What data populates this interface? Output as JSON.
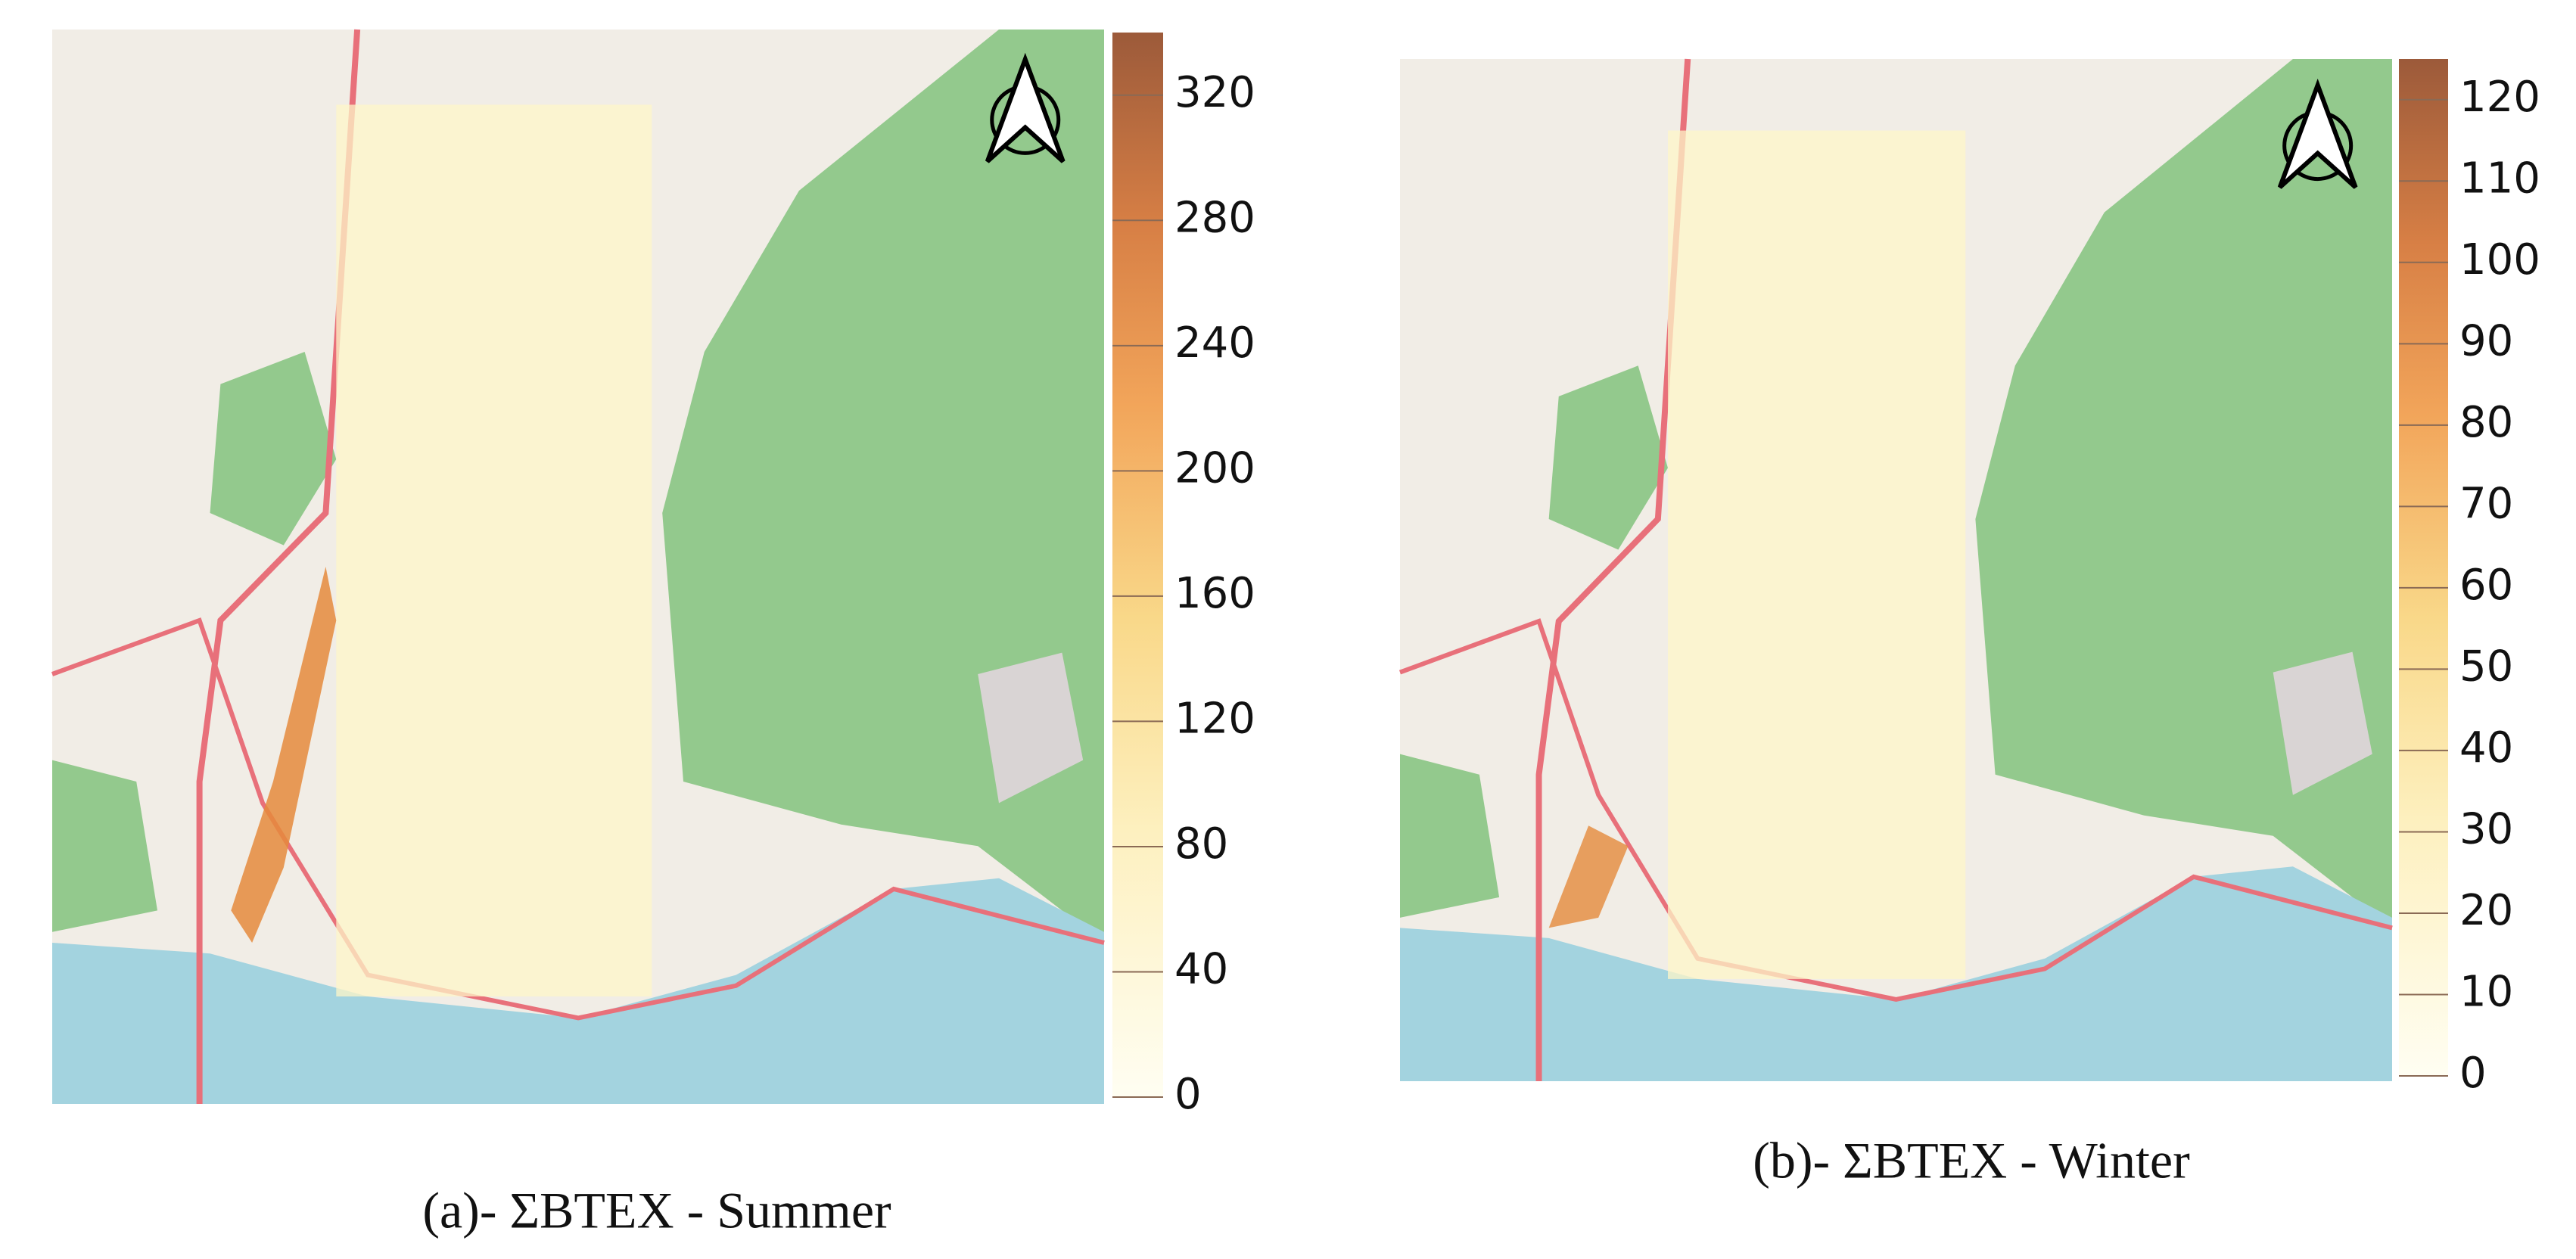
{
  "panels": [
    {
      "caption": "(a)- ΣBTEX - Summer",
      "colorbar": {
        "lim": [
          0,
          340
        ],
        "ticks": [
          0,
          40,
          80,
          120,
          160,
          200,
          240,
          280,
          320
        ]
      }
    },
    {
      "caption": "(b)- ΣBTEX - Winter",
      "colorbar": {
        "lim": [
          0,
          125
        ],
        "ticks": [
          0,
          10,
          20,
          30,
          40,
          50,
          60,
          70,
          80,
          90,
          100,
          110,
          120
        ]
      }
    }
  ]
}
